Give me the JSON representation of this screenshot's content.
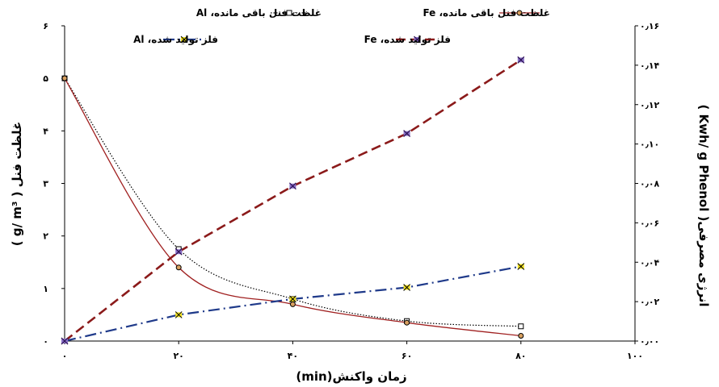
{
  "chart_data": {
    "type": "line",
    "x": [
      0,
      20,
      40,
      60,
      80
    ],
    "xlim": [
      0,
      100
    ],
    "xticks": [
      0,
      20,
      40,
      60,
      80,
      100
    ],
    "xtick_labels": [
      "۰",
      "۲۰",
      "۴۰",
      "۶۰",
      "۸۰",
      "۱۰۰"
    ],
    "xlabel": "زمان واکنش(min)",
    "ylabel_left": "غلظت فنل ( g/ m³ )",
    "ylim_left": [
      0,
      6
    ],
    "yticks_left": [
      0,
      1,
      2,
      3,
      4,
      5,
      6
    ],
    "ytick_labels_left": [
      "۰",
      "۱",
      "۲",
      "۳",
      "۴",
      "۵",
      "۶"
    ],
    "ylabel_right": "انرژی مصرفی( Kwh/ g Phenol )",
    "ylim_right": [
      0,
      0.16
    ],
    "yticks_right": [
      0,
      0.02,
      0.04,
      0.06,
      0.08,
      0.1,
      0.12,
      0.14,
      0.16
    ],
    "ytick_labels_right": [
      "۰٫۰۰",
      "۰٫۰۲",
      "۰٫۰۴",
      "۰٫۰۶",
      "۰٫۰۸",
      "۰٫۱۰",
      "۰٫۱۲",
      "۰٫۱۴",
      "۰٫۱۶"
    ],
    "legend_position": "top",
    "series": [
      {
        "name": "غلظت فنل باقی مانده، Al",
        "axis": "left",
        "values": [
          5.0,
          1.75,
          0.8,
          0.38,
          0.28
        ],
        "color": "#000000",
        "marker": "square",
        "dash": "dotted"
      },
      {
        "name": "غلظت فنل باقی مانده، Fe",
        "axis": "left",
        "values": [
          5.0,
          1.4,
          0.7,
          0.35,
          0.1
        ],
        "color": "#a02020",
        "marker": "circle",
        "dash": "solid"
      },
      {
        "name": "فلز تولید شده، Al",
        "axis": "left",
        "values": [
          0.0,
          0.5,
          0.8,
          1.02,
          1.42
        ],
        "color": "#1f3a8a",
        "marker": "x-yellow",
        "dash": "dashdot"
      },
      {
        "name": "فلز تولید شده، Fe",
        "axis": "left",
        "values": [
          0.0,
          1.7,
          2.95,
          3.95,
          5.35
        ],
        "color": "#8b1a1a",
        "marker": "x-purple",
        "dash": "dashed"
      }
    ]
  }
}
